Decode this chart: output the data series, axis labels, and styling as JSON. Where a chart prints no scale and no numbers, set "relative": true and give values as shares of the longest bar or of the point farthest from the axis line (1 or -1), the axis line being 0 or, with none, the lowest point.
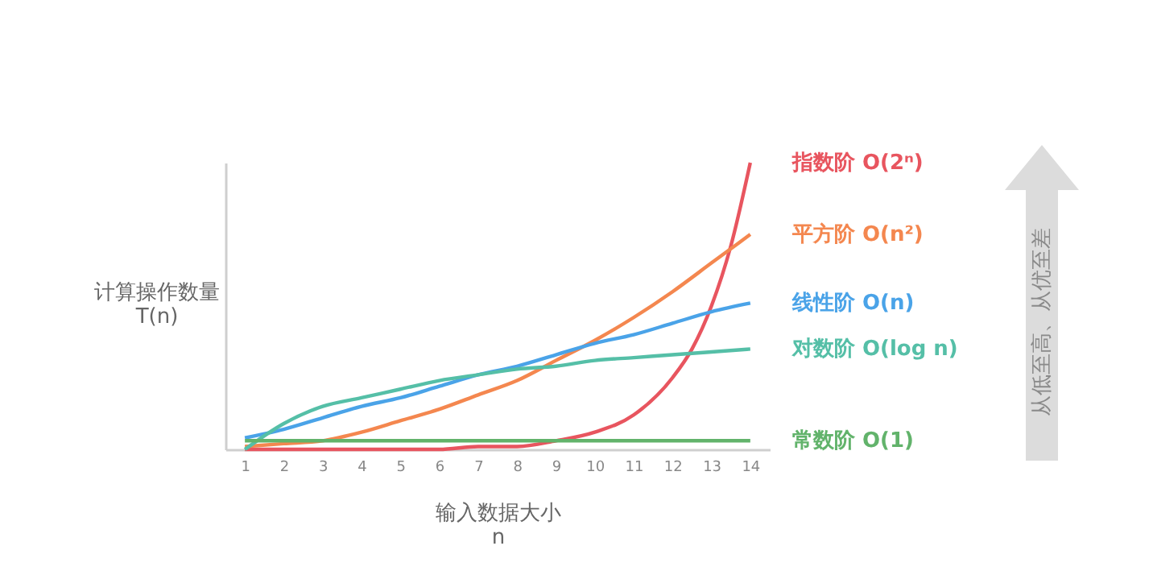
{
  "chart_data": {
    "type": "line",
    "relative": true,
    "xlabel": "输入数据大小\nn",
    "ylabel": "计算操作数量\nT(n)",
    "x": [
      1,
      2,
      3,
      4,
      5,
      6,
      7,
      8,
      9,
      10,
      11,
      12,
      13,
      14
    ],
    "xlim": [
      0.5,
      14.5
    ],
    "xticks": [
      1,
      2,
      3,
      4,
      5,
      6,
      7,
      8,
      9,
      10,
      11,
      12,
      13,
      14
    ],
    "grid": false,
    "legend": false,
    "marker": "none",
    "line_style": "solid",
    "annotations": [
      "从低至高、从优至差"
    ],
    "series": [
      {
        "name": "指数阶  O(2ⁿ)",
        "color": "#e8555f",
        "x": [
          1,
          2,
          3,
          4,
          5,
          6,
          7,
          8,
          9,
          10,
          11,
          12,
          12.5,
          13,
          13.5,
          14
        ],
        "values": [
          0,
          0,
          0,
          0,
          0,
          0,
          0.01,
          0.01,
          0.03,
          0.06,
          0.12,
          0.25,
          0.35,
          0.5,
          0.71,
          1
        ]
      },
      {
        "name": "平方阶  O(n²)",
        "color": "#f4874f",
        "values": [
          0.01,
          0.02,
          0.03,
          0.06,
          0.1,
          0.14,
          0.19,
          0.24,
          0.31,
          0.38,
          0.46,
          0.55,
          0.65,
          0.75
        ]
      },
      {
        "name": "线性阶  O(n)",
        "color": "#4aa3e8",
        "values": [
          0.04,
          0.07,
          0.11,
          0.15,
          0.18,
          0.22,
          0.26,
          0.29,
          0.33,
          0.37,
          0.4,
          0.44,
          0.48,
          0.51
        ]
      },
      {
        "name": "对数阶  O(log n)",
        "color": "#55bfa7",
        "values": [
          0,
          0.09,
          0.15,
          0.18,
          0.21,
          0.24,
          0.26,
          0.28,
          0.29,
          0.31,
          0.32,
          0.33,
          0.34,
          0.35
        ]
      },
      {
        "name": "常数阶  O(1)",
        "color": "#62b36b",
        "values": [
          0.03,
          0.03,
          0.03,
          0.03,
          0.03,
          0.03,
          0.03,
          0.03,
          0.03,
          0.03,
          0.03,
          0.03,
          0.03,
          0.03
        ]
      }
    ]
  }
}
